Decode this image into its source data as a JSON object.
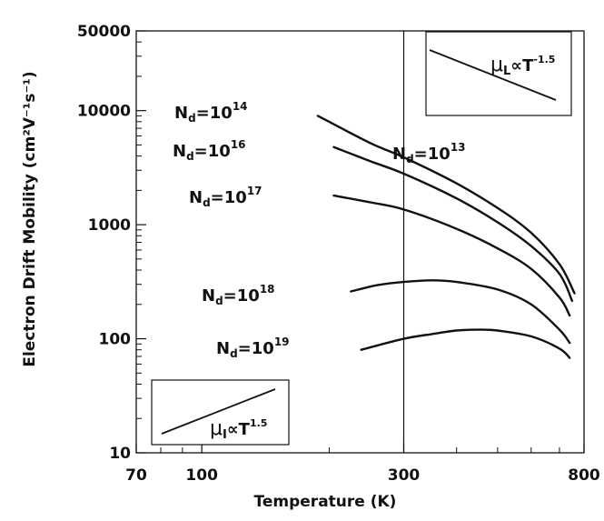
{
  "chart_data": {
    "type": "line",
    "xlabel": "Temperature (K)",
    "ylabel": "Electron Drift Mobility (cm²V⁻¹s⁻¹)",
    "xscale": "log",
    "yscale": "log",
    "xlim": [
      70,
      800
    ],
    "ylim": [
      10,
      50000
    ],
    "x_ticks": [
      70,
      100,
      300,
      800
    ],
    "y_ticks": [
      10,
      100,
      1000,
      10000,
      50000
    ],
    "vertical_line_x": 300,
    "grid": false,
    "series": [
      {
        "name": "Nd=10^14",
        "label": {
          "base": "N",
          "sub": "d",
          "mid": "=10",
          "sup": "14"
        },
        "x": [
          188,
          250,
          300,
          400,
          500,
          600,
          700,
          760
        ],
        "y": [
          9000,
          5200,
          3900,
          2300,
          1400,
          850,
          450,
          250
        ]
      },
      {
        "name": "Nd=10^16",
        "label": {
          "base": "N",
          "sub": "d",
          "mid": "=10",
          "sup": "16"
        },
        "x": [
          205,
          250,
          300,
          400,
          500,
          600,
          700,
          750
        ],
        "y": [
          4800,
          3600,
          2800,
          1700,
          1050,
          650,
          370,
          215
        ]
      },
      {
        "name": "Nd=10^17",
        "label": {
          "base": "N",
          "sub": "d",
          "mid": "=10",
          "sup": "17"
        },
        "x": [
          205,
          250,
          300,
          400,
          500,
          600,
          700,
          740
        ],
        "y": [
          1800,
          1570,
          1360,
          920,
          620,
          410,
          230,
          160
        ]
      },
      {
        "name": "Nd=10^18",
        "label": {
          "base": "N",
          "sub": "d",
          "mid": "=10",
          "sup": "18"
        },
        "x": [
          225,
          260,
          300,
          350,
          400,
          500,
          600,
          700,
          740
        ],
        "y": [
          260,
          295,
          315,
          325,
          315,
          270,
          200,
          120,
          92
        ]
      },
      {
        "name": "Nd=10^19",
        "label": {
          "base": "N",
          "sub": "d",
          "mid": "=10",
          "sup": "19"
        },
        "x": [
          238,
          300,
          350,
          400,
          450,
          500,
          600,
          700,
          740
        ],
        "y": [
          80,
          100,
          110,
          118,
          120,
          118,
          105,
          82,
          68
        ]
      }
    ],
    "annotations": [
      {
        "label": {
          "base": "N",
          "sub": "d",
          "mid": "=10",
          "sup": "13"
        }
      }
    ],
    "insets": [
      {
        "position": "top-right",
        "text": {
          "mu": "μ",
          "sub": "L",
          "rel": "∝T",
          "sup": "-1.5"
        },
        "trend": "decreasing"
      },
      {
        "position": "bottom-left",
        "text": {
          "mu": "μ",
          "sub": "I",
          "rel": "∝T",
          "sup": "1.5"
        },
        "trend": "increasing"
      }
    ]
  }
}
